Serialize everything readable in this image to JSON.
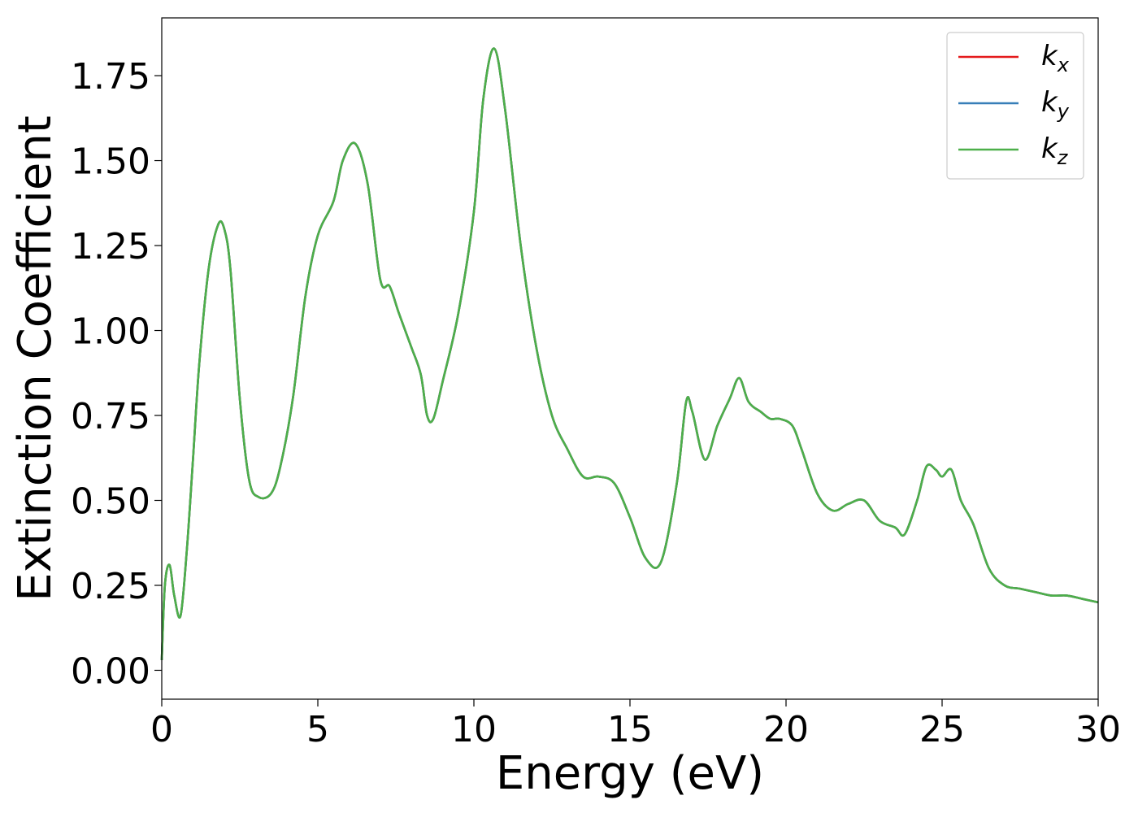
{
  "chart_data": {
    "type": "line",
    "title": "",
    "xlabel": "Energy (eV)",
    "ylabel": "Extinction Coefficient",
    "xlim": [
      0,
      30
    ],
    "ylim": [
      -0.085,
      1.92
    ],
    "xticks": [
      0,
      5,
      10,
      15,
      20,
      25,
      30
    ],
    "xtick_labels": [
      "0",
      "5",
      "10",
      "15",
      "20",
      "25",
      "30"
    ],
    "yticks": [
      0,
      0.25,
      0.5,
      0.75,
      1.0,
      1.25,
      1.5,
      1.75
    ],
    "ytick_labels": [
      "0.00",
      "0.25",
      "0.50",
      "0.75",
      "1.00",
      "1.25",
      "1.50",
      "1.75"
    ],
    "grid": false,
    "legend_position": "top-right",
    "series": [
      {
        "name": "k_x",
        "label_main": "k",
        "label_sub": "x",
        "color": "#e41a1c",
        "x": [
          0,
          0.1,
          0.25,
          0.4,
          0.6,
          0.8,
          1.0,
          1.2,
          1.5,
          1.8,
          2.0,
          2.2,
          2.5,
          2.8,
          3.1,
          3.5,
          3.8,
          4.2,
          4.6,
          5.0,
          5.5,
          5.8,
          6.2,
          6.6,
          7.0,
          7.3,
          7.6,
          8.0,
          8.3,
          8.5,
          8.7,
          9.0,
          9.5,
          10.0,
          10.3,
          10.65,
          11.0,
          11.5,
          12.0,
          12.5,
          13.0,
          13.5,
          14.0,
          14.5,
          15.0,
          15.5,
          16.0,
          16.5,
          16.8,
          17.0,
          17.4,
          17.8,
          18.2,
          18.5,
          18.8,
          19.2,
          19.5,
          19.8,
          20.2,
          20.5,
          21.0,
          21.5,
          22.0,
          22.5,
          23.0,
          23.5,
          23.8,
          24.2,
          24.5,
          24.8,
          25.0,
          25.3,
          25.6,
          26.0,
          26.5,
          27.0,
          27.5,
          28.0,
          28.5,
          29.0,
          29.5,
          30.0
        ],
        "values": [
          0.03,
          0.25,
          0.31,
          0.22,
          0.16,
          0.35,
          0.62,
          0.9,
          1.18,
          1.31,
          1.3,
          1.18,
          0.8,
          0.56,
          0.51,
          0.52,
          0.6,
          0.8,
          1.1,
          1.28,
          1.38,
          1.5,
          1.55,
          1.43,
          1.15,
          1.13,
          1.05,
          0.95,
          0.87,
          0.75,
          0.74,
          0.85,
          1.05,
          1.35,
          1.68,
          1.83,
          1.65,
          1.25,
          0.95,
          0.75,
          0.65,
          0.57,
          0.57,
          0.55,
          0.45,
          0.33,
          0.32,
          0.55,
          0.79,
          0.76,
          0.62,
          0.72,
          0.8,
          0.86,
          0.79,
          0.76,
          0.74,
          0.74,
          0.72,
          0.65,
          0.52,
          0.47,
          0.49,
          0.5,
          0.44,
          0.42,
          0.4,
          0.5,
          0.6,
          0.59,
          0.57,
          0.59,
          0.5,
          0.43,
          0.3,
          0.25,
          0.24,
          0.23,
          0.22,
          0.22,
          0.21,
          0.2
        ]
      },
      {
        "name": "k_y",
        "label_main": "k",
        "label_sub": "y",
        "color": "#377eb8",
        "x": [
          0,
          0.1,
          0.25,
          0.4,
          0.6,
          0.8,
          1.0,
          1.2,
          1.5,
          1.8,
          2.0,
          2.2,
          2.5,
          2.8,
          3.1,
          3.5,
          3.8,
          4.2,
          4.6,
          5.0,
          5.5,
          5.8,
          6.2,
          6.6,
          7.0,
          7.3,
          7.6,
          8.0,
          8.3,
          8.5,
          8.7,
          9.0,
          9.5,
          10.0,
          10.3,
          10.65,
          11.0,
          11.5,
          12.0,
          12.5,
          13.0,
          13.5,
          14.0,
          14.5,
          15.0,
          15.5,
          16.0,
          16.5,
          16.8,
          17.0,
          17.4,
          17.8,
          18.2,
          18.5,
          18.8,
          19.2,
          19.5,
          19.8,
          20.2,
          20.5,
          21.0,
          21.5,
          22.0,
          22.5,
          23.0,
          23.5,
          23.8,
          24.2,
          24.5,
          24.8,
          25.0,
          25.3,
          25.6,
          26.0,
          26.5,
          27.0,
          27.5,
          28.0,
          28.5,
          29.0,
          29.5,
          30.0
        ],
        "values": [
          0.03,
          0.25,
          0.31,
          0.22,
          0.16,
          0.35,
          0.62,
          0.9,
          1.18,
          1.31,
          1.3,
          1.18,
          0.8,
          0.56,
          0.51,
          0.52,
          0.6,
          0.8,
          1.1,
          1.28,
          1.38,
          1.5,
          1.55,
          1.43,
          1.15,
          1.13,
          1.05,
          0.95,
          0.87,
          0.75,
          0.74,
          0.85,
          1.05,
          1.35,
          1.68,
          1.83,
          1.65,
          1.25,
          0.95,
          0.75,
          0.65,
          0.57,
          0.57,
          0.55,
          0.45,
          0.33,
          0.32,
          0.55,
          0.79,
          0.76,
          0.62,
          0.72,
          0.8,
          0.86,
          0.79,
          0.76,
          0.74,
          0.74,
          0.72,
          0.65,
          0.52,
          0.47,
          0.49,
          0.5,
          0.44,
          0.42,
          0.4,
          0.5,
          0.6,
          0.59,
          0.57,
          0.59,
          0.5,
          0.43,
          0.3,
          0.25,
          0.24,
          0.23,
          0.22,
          0.22,
          0.21,
          0.2
        ]
      },
      {
        "name": "k_z",
        "label_main": "k",
        "label_sub": "z",
        "color": "#4daf4a",
        "x": [
          0,
          0.1,
          0.25,
          0.4,
          0.6,
          0.8,
          1.0,
          1.2,
          1.5,
          1.8,
          2.0,
          2.2,
          2.5,
          2.8,
          3.1,
          3.5,
          3.8,
          4.2,
          4.6,
          5.0,
          5.5,
          5.8,
          6.2,
          6.6,
          7.0,
          7.3,
          7.6,
          8.0,
          8.3,
          8.5,
          8.7,
          9.0,
          9.5,
          10.0,
          10.3,
          10.65,
          11.0,
          11.5,
          12.0,
          12.5,
          13.0,
          13.5,
          14.0,
          14.5,
          15.0,
          15.5,
          16.0,
          16.5,
          16.8,
          17.0,
          17.4,
          17.8,
          18.2,
          18.5,
          18.8,
          19.2,
          19.5,
          19.8,
          20.2,
          20.5,
          21.0,
          21.5,
          22.0,
          22.5,
          23.0,
          23.5,
          23.8,
          24.2,
          24.5,
          24.8,
          25.0,
          25.3,
          25.6,
          26.0,
          26.5,
          27.0,
          27.5,
          28.0,
          28.5,
          29.0,
          29.5,
          30.0
        ],
        "values": [
          0.03,
          0.25,
          0.31,
          0.22,
          0.16,
          0.35,
          0.62,
          0.9,
          1.18,
          1.31,
          1.3,
          1.18,
          0.8,
          0.56,
          0.51,
          0.52,
          0.6,
          0.8,
          1.1,
          1.28,
          1.38,
          1.5,
          1.55,
          1.43,
          1.15,
          1.13,
          1.05,
          0.95,
          0.87,
          0.75,
          0.74,
          0.85,
          1.05,
          1.35,
          1.68,
          1.83,
          1.65,
          1.25,
          0.95,
          0.75,
          0.65,
          0.57,
          0.57,
          0.55,
          0.45,
          0.33,
          0.32,
          0.55,
          0.79,
          0.76,
          0.62,
          0.72,
          0.8,
          0.86,
          0.79,
          0.76,
          0.74,
          0.74,
          0.72,
          0.65,
          0.52,
          0.47,
          0.49,
          0.5,
          0.44,
          0.42,
          0.4,
          0.5,
          0.6,
          0.59,
          0.57,
          0.59,
          0.5,
          0.43,
          0.3,
          0.25,
          0.24,
          0.23,
          0.22,
          0.22,
          0.21,
          0.2
        ]
      }
    ]
  }
}
